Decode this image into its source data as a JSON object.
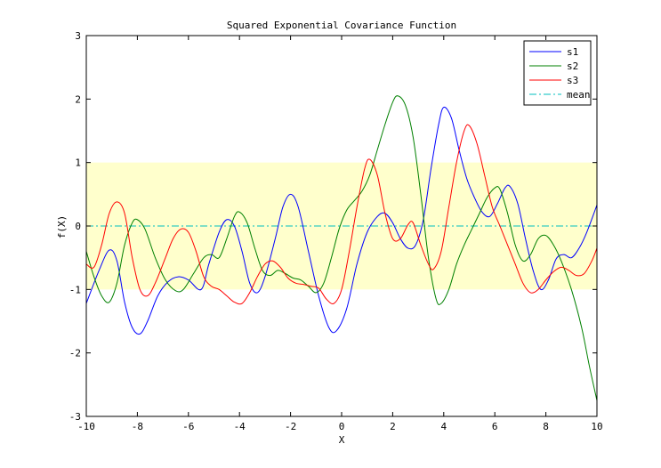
{
  "chart_data": {
    "type": "line",
    "title": "Squared Exponential Covariance Function",
    "xlabel": "X",
    "ylabel": "f(X)",
    "xlim": [
      -10,
      10
    ],
    "ylim": [
      -3,
      3
    ],
    "xticks": [
      -10,
      -8,
      -6,
      -4,
      -2,
      0,
      2,
      4,
      6,
      8,
      10
    ],
    "yticks": [
      -3,
      -2,
      -1,
      0,
      1,
      2,
      3
    ],
    "grid": false,
    "legend_position": "top-right",
    "band": {
      "lower": -1,
      "upper": 1,
      "color": "#ffffcc"
    },
    "series": [
      {
        "name": "s1",
        "color": "#0000ff",
        "style": "solid",
        "points": [
          [
            -10,
            -1.22
          ],
          [
            -9.5,
            -0.7
          ],
          [
            -9.1,
            -0.38
          ],
          [
            -8.8,
            -0.55
          ],
          [
            -8.5,
            -1.2
          ],
          [
            -8.2,
            -1.6
          ],
          [
            -7.9,
            -1.7
          ],
          [
            -7.6,
            -1.5
          ],
          [
            -7.2,
            -1.1
          ],
          [
            -6.8,
            -0.88
          ],
          [
            -6.4,
            -0.8
          ],
          [
            -6.0,
            -0.85
          ],
          [
            -5.5,
            -1.0
          ],
          [
            -5.2,
            -0.6
          ],
          [
            -4.8,
            -0.1
          ],
          [
            -4.5,
            0.1
          ],
          [
            -4.2,
            0.0
          ],
          [
            -3.9,
            -0.4
          ],
          [
            -3.6,
            -0.9
          ],
          [
            -3.3,
            -1.05
          ],
          [
            -3.0,
            -0.8
          ],
          [
            -2.6,
            -0.2
          ],
          [
            -2.3,
            0.3
          ],
          [
            -2.0,
            0.5
          ],
          [
            -1.7,
            0.3
          ],
          [
            -1.3,
            -0.4
          ],
          [
            -0.9,
            -1.1
          ],
          [
            -0.5,
            -1.6
          ],
          [
            -0.2,
            -1.65
          ],
          [
            0.2,
            -1.3
          ],
          [
            0.6,
            -0.6
          ],
          [
            1.0,
            -0.1
          ],
          [
            1.4,
            0.15
          ],
          [
            1.7,
            0.2
          ],
          [
            2.0,
            0.05
          ],
          [
            2.3,
            -0.2
          ],
          [
            2.6,
            -0.35
          ],
          [
            2.9,
            -0.3
          ],
          [
            3.2,
            0.1
          ],
          [
            3.5,
            0.9
          ],
          [
            3.8,
            1.6
          ],
          [
            4.0,
            1.87
          ],
          [
            4.3,
            1.7
          ],
          [
            4.6,
            1.2
          ],
          [
            4.9,
            0.75
          ],
          [
            5.2,
            0.45
          ],
          [
            5.5,
            0.22
          ],
          [
            5.8,
            0.15
          ],
          [
            6.1,
            0.35
          ],
          [
            6.4,
            0.6
          ],
          [
            6.6,
            0.62
          ],
          [
            6.9,
            0.35
          ],
          [
            7.2,
            -0.2
          ],
          [
            7.5,
            -0.7
          ],
          [
            7.8,
            -1.0
          ],
          [
            8.1,
            -0.85
          ],
          [
            8.4,
            -0.52
          ],
          [
            8.7,
            -0.45
          ],
          [
            9.0,
            -0.5
          ],
          [
            9.3,
            -0.35
          ],
          [
            9.6,
            -0.1
          ],
          [
            10,
            0.33
          ]
        ]
      },
      {
        "name": "s2",
        "color": "#008000",
        "style": "solid",
        "points": [
          [
            -10,
            -0.4
          ],
          [
            -9.7,
            -0.8
          ],
          [
            -9.4,
            -1.1
          ],
          [
            -9.1,
            -1.2
          ],
          [
            -8.8,
            -0.9
          ],
          [
            -8.5,
            -0.3
          ],
          [
            -8.2,
            0.05
          ],
          [
            -8.0,
            0.1
          ],
          [
            -7.7,
            -0.05
          ],
          [
            -7.3,
            -0.5
          ],
          [
            -6.9,
            -0.85
          ],
          [
            -6.5,
            -1.02
          ],
          [
            -6.2,
            -1.0
          ],
          [
            -5.8,
            -0.75
          ],
          [
            -5.4,
            -0.5
          ],
          [
            -5.1,
            -0.45
          ],
          [
            -4.8,
            -0.5
          ],
          [
            -4.5,
            -0.2
          ],
          [
            -4.2,
            0.15
          ],
          [
            -4.0,
            0.22
          ],
          [
            -3.7,
            0.05
          ],
          [
            -3.4,
            -0.35
          ],
          [
            -3.1,
            -0.7
          ],
          [
            -2.8,
            -0.78
          ],
          [
            -2.5,
            -0.7
          ],
          [
            -2.2,
            -0.75
          ],
          [
            -1.9,
            -0.82
          ],
          [
            -1.6,
            -0.85
          ],
          [
            -1.3,
            -0.95
          ],
          [
            -1.0,
            -1.05
          ],
          [
            -0.7,
            -0.9
          ],
          [
            -0.4,
            -0.5
          ],
          [
            -0.1,
            -0.05
          ],
          [
            0.2,
            0.25
          ],
          [
            0.5,
            0.4
          ],
          [
            0.8,
            0.55
          ],
          [
            1.1,
            0.8
          ],
          [
            1.4,
            1.2
          ],
          [
            1.7,
            1.6
          ],
          [
            2.0,
            1.95
          ],
          [
            2.2,
            2.05
          ],
          [
            2.5,
            1.9
          ],
          [
            2.8,
            1.4
          ],
          [
            3.1,
            0.5
          ],
          [
            3.4,
            -0.5
          ],
          [
            3.7,
            -1.15
          ],
          [
            3.9,
            -1.22
          ],
          [
            4.2,
            -1.0
          ],
          [
            4.5,
            -0.6
          ],
          [
            4.8,
            -0.3
          ],
          [
            5.1,
            -0.05
          ],
          [
            5.4,
            0.2
          ],
          [
            5.7,
            0.45
          ],
          [
            6.0,
            0.6
          ],
          [
            6.2,
            0.58
          ],
          [
            6.5,
            0.2
          ],
          [
            6.8,
            -0.3
          ],
          [
            7.1,
            -0.55
          ],
          [
            7.4,
            -0.45
          ],
          [
            7.7,
            -0.2
          ],
          [
            8.0,
            -0.15
          ],
          [
            8.3,
            -0.3
          ],
          [
            8.6,
            -0.55
          ],
          [
            9.0,
            -1.0
          ],
          [
            9.4,
            -1.6
          ],
          [
            9.7,
            -2.2
          ],
          [
            10,
            -2.75
          ]
        ]
      },
      {
        "name": "s3",
        "color": "#ff0000",
        "style": "solid",
        "points": [
          [
            -10,
            -0.6
          ],
          [
            -9.7,
            -0.65
          ],
          [
            -9.4,
            -0.3
          ],
          [
            -9.1,
            0.2
          ],
          [
            -8.8,
            0.38
          ],
          [
            -8.5,
            0.2
          ],
          [
            -8.2,
            -0.5
          ],
          [
            -7.9,
            -1.0
          ],
          [
            -7.6,
            -1.1
          ],
          [
            -7.3,
            -0.9
          ],
          [
            -6.9,
            -0.5
          ],
          [
            -6.6,
            -0.2
          ],
          [
            -6.3,
            -0.05
          ],
          [
            -6.0,
            -0.1
          ],
          [
            -5.7,
            -0.4
          ],
          [
            -5.4,
            -0.8
          ],
          [
            -5.1,
            -0.95
          ],
          [
            -4.8,
            -1.0
          ],
          [
            -4.5,
            -1.1
          ],
          [
            -4.2,
            -1.2
          ],
          [
            -3.9,
            -1.22
          ],
          [
            -3.6,
            -1.05
          ],
          [
            -3.3,
            -0.8
          ],
          [
            -3.0,
            -0.6
          ],
          [
            -2.7,
            -0.55
          ],
          [
            -2.4,
            -0.65
          ],
          [
            -2.1,
            -0.82
          ],
          [
            -1.8,
            -0.9
          ],
          [
            -1.5,
            -0.92
          ],
          [
            -1.2,
            -0.95
          ],
          [
            -0.9,
            -0.98
          ],
          [
            -0.6,
            -1.15
          ],
          [
            -0.3,
            -1.22
          ],
          [
            0.0,
            -1.0
          ],
          [
            0.3,
            -0.4
          ],
          [
            0.6,
            0.3
          ],
          [
            0.9,
            0.9
          ],
          [
            1.1,
            1.05
          ],
          [
            1.4,
            0.8
          ],
          [
            1.7,
            0.2
          ],
          [
            2.0,
            -0.2
          ],
          [
            2.3,
            -0.2
          ],
          [
            2.6,
            0.02
          ],
          [
            2.8,
            0.05
          ],
          [
            3.1,
            -0.3
          ],
          [
            3.4,
            -0.6
          ],
          [
            3.6,
            -0.68
          ],
          [
            3.9,
            -0.4
          ],
          [
            4.2,
            0.3
          ],
          [
            4.5,
            1.0
          ],
          [
            4.8,
            1.5
          ],
          [
            5.0,
            1.58
          ],
          [
            5.3,
            1.3
          ],
          [
            5.6,
            0.8
          ],
          [
            5.9,
            0.3
          ],
          [
            6.2,
            0.0
          ],
          [
            6.5,
            -0.3
          ],
          [
            6.8,
            -0.6
          ],
          [
            7.1,
            -0.9
          ],
          [
            7.4,
            -1.05
          ],
          [
            7.7,
            -1.0
          ],
          [
            8.0,
            -0.85
          ],
          [
            8.3,
            -0.72
          ],
          [
            8.6,
            -0.65
          ],
          [
            8.9,
            -0.7
          ],
          [
            9.2,
            -0.78
          ],
          [
            9.5,
            -0.75
          ],
          [
            9.8,
            -0.55
          ],
          [
            10,
            -0.35
          ]
        ]
      },
      {
        "name": "mean",
        "color": "#00bfbf",
        "style": "dashdot",
        "points": [
          [
            -10,
            0
          ],
          [
            10,
            0
          ]
        ]
      }
    ]
  }
}
